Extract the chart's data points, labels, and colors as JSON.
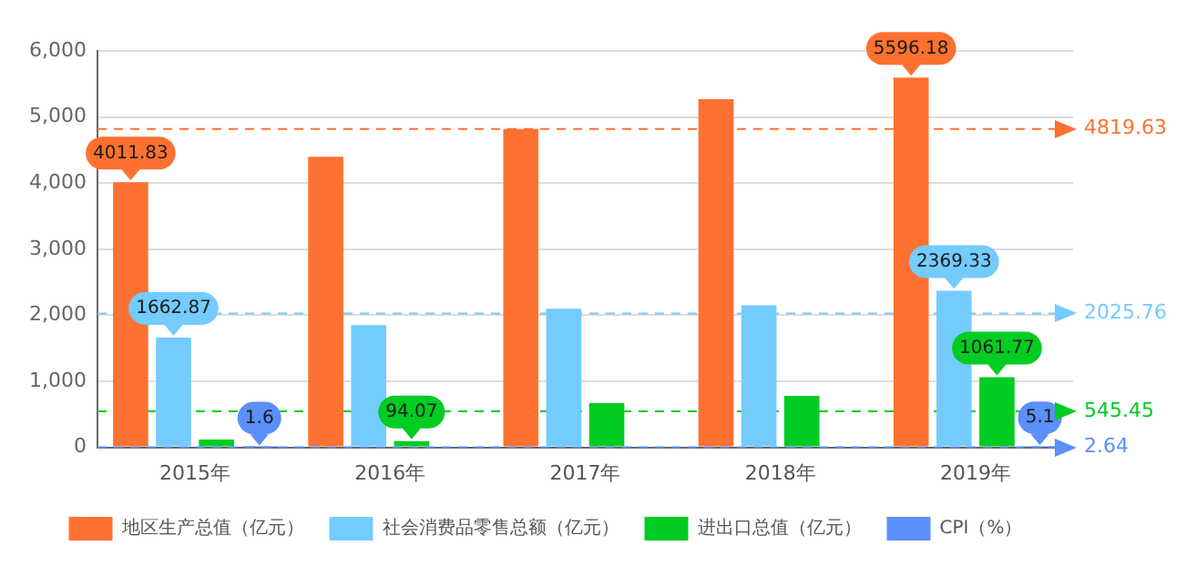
{
  "chart_data": {
    "type": "bar",
    "categories": [
      "2015年",
      "2016年",
      "2017年",
      "2018年",
      "2019年"
    ],
    "series": [
      {
        "name": "地区生产总值（亿元）",
        "color": "#ff7130",
        "values": [
          4011.83,
          4400,
          4820,
          5270,
          5596.18
        ],
        "value_labels": [
          "4011.83",
          null,
          null,
          null,
          "5596.18"
        ]
      },
      {
        "name": "社会消费品零售总额（亿元）",
        "color": "#74cbfe",
        "values": [
          1662.87,
          1850,
          2100,
          2150,
          2369.33
        ],
        "value_labels": [
          "1662.87",
          null,
          null,
          null,
          "2369.33"
        ]
      },
      {
        "name": "进出口总值（亿元）",
        "color": "#00cc22",
        "values": [
          120,
          94.07,
          670,
          780,
          1061.77
        ],
        "value_labels": [
          null,
          "94.07",
          null,
          null,
          "1061.77"
        ]
      },
      {
        "name": "CPI（%）",
        "color": "#5b8ff9",
        "values": [
          1.6,
          null,
          null,
          null,
          5.1
        ],
        "value_labels": [
          "1.6",
          null,
          null,
          null,
          "5.1"
        ]
      }
    ],
    "ylim": [
      0,
      6000
    ],
    "yticks": [
      0,
      {
        "value": 1000,
        "label": "1,000"
      },
      {
        "value": 2000,
        "label": "2,000"
      },
      {
        "value": 3000,
        "label": "3,000"
      },
      {
        "value": 4000,
        "label": "4,000"
      },
      {
        "value": 5000,
        "label": "5,000"
      },
      {
        "value": 6000,
        "label": "6,000"
      }
    ],
    "ref_lines": [
      {
        "axis": "y",
        "value": 4819.63,
        "label": "4819.63",
        "color": "#ff7130",
        "line_style": "dashed"
      },
      {
        "axis": "y",
        "value": 2025.76,
        "label": "2025.76",
        "color": "#74cbfe",
        "line_style": "dashed"
      },
      {
        "axis": "y",
        "value": 545.45,
        "label": "545.45",
        "color": "#00cc22",
        "line_style": "dashed"
      },
      {
        "axis": "y",
        "value": 2.64,
        "label": "2.64",
        "color": "#5b8ff9",
        "line_style": "dashed"
      }
    ],
    "grid": "y",
    "legend": "bottom"
  }
}
